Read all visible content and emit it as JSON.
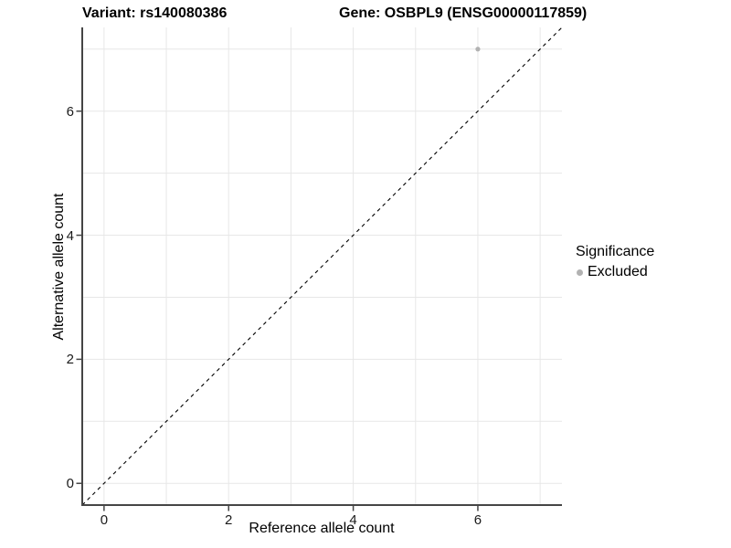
{
  "chart_data": {
    "type": "scatter",
    "title_left": "Variant: rs140080386",
    "title_right": "Gene: OSBPL9 (ENSG00000117859)",
    "xlabel": "Reference allele count",
    "ylabel": "Alternative allele count",
    "xlim": [
      -0.35,
      7.35
    ],
    "ylim": [
      -0.35,
      7.35
    ],
    "x_ticks": [
      0,
      2,
      4,
      6
    ],
    "y_ticks": [
      0,
      2,
      4,
      6
    ],
    "x_gridlines": [
      0,
      1,
      2,
      3,
      4,
      5,
      6,
      7
    ],
    "y_gridlines": [
      0,
      1,
      2,
      3,
      4,
      5,
      6,
      7
    ],
    "grid": true,
    "series": [
      {
        "name": "Excluded",
        "color": "#b2b2b2",
        "points": [
          {
            "x": 6,
            "y": 7
          }
        ]
      }
    ],
    "identity_line": {
      "equation": "y = x",
      "style": "dashed",
      "color": "#000000"
    },
    "legend": {
      "title": "Significance",
      "position": "right",
      "entries": [
        {
          "label": "Excluded",
          "color": "#b2b2b2",
          "marker": "circle"
        }
      ]
    },
    "style": {
      "background": "#ffffff",
      "gridline_color": "#e7e7e7",
      "axis_line_color": "#454545",
      "tick_label_color": "#1a1a1a",
      "point_color": "#b2b2b2"
    }
  }
}
